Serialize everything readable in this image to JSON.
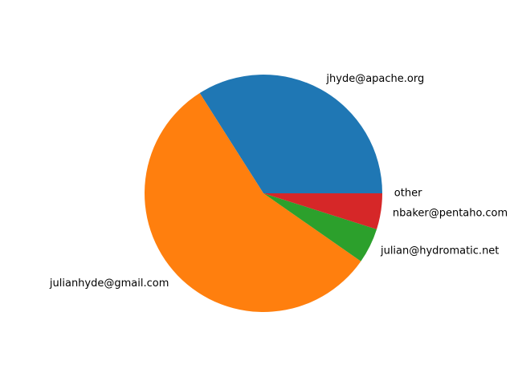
{
  "chart_data": {
    "type": "pie",
    "labels": [
      "jhyde@apache.org",
      "julianhyde@gmail.com",
      "julian@hydromatic.net",
      "nbaker@pentaho.com",
      "other"
    ],
    "values": [
      34.0,
      56.3,
      4.8,
      4.9,
      0.0
    ],
    "colors": [
      "#1f77b4",
      "#ff7f0e",
      "#2ca02c",
      "#d62728",
      "#9467bd"
    ],
    "start_angle": 0,
    "direction": "counterclockwise",
    "legend": false,
    "title": ""
  }
}
